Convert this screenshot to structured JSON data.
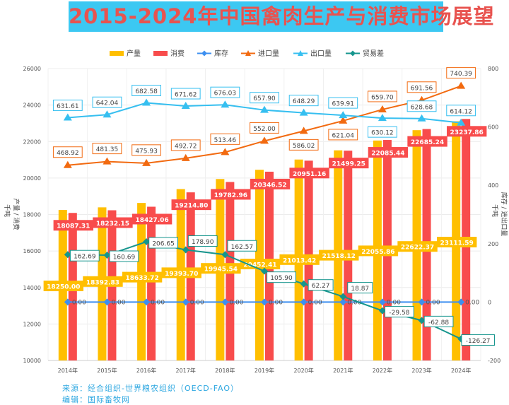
{
  "title": "2015-2024年中国禽肉生产与消费市场展望",
  "footer": {
    "source": "来源：经合组织-世界粮农组织（OECD-FAO）",
    "editor": "编辑：国际畜牧网"
  },
  "chart_data": {
    "type": "bar+line",
    "categories": [
      "2014年",
      "2015年",
      "2016年",
      "2017年",
      "2018年",
      "2019年",
      "2020年",
      "2021年",
      "2022年",
      "2023年",
      "2024年"
    ],
    "left_axis": {
      "label": "产量 / 消费",
      "unit": "千吨",
      "range": [
        10000,
        26000
      ],
      "ticks": [
        10000,
        12000,
        14000,
        16000,
        18000,
        20000,
        22000,
        24000,
        26000
      ]
    },
    "right_axis": {
      "label": "库存 / 进出口量",
      "unit": "千吨",
      "range": [
        -200,
        800
      ],
      "ticks": [
        -200,
        0,
        200,
        400,
        600,
        800
      ]
    },
    "grid": true,
    "legend_position": "top",
    "series": [
      {
        "name": "产量",
        "kind": "bar",
        "axis": "left",
        "color": "#ffbf00",
        "values": [
          18250.0,
          18392.83,
          18633.72,
          19393.7,
          19945.54,
          20452.41,
          21013.42,
          21518.12,
          22055.86,
          22622.37,
          23111.59
        ]
      },
      {
        "name": "消费",
        "kind": "bar",
        "axis": "left",
        "color": "#f84c4c",
        "values": [
          18087.31,
          18232.15,
          18427.06,
          19214.8,
          19782.96,
          20346.52,
          20951.16,
          21499.25,
          22085.44,
          22685.24,
          23237.86
        ]
      },
      {
        "name": "库存",
        "kind": "line",
        "axis": "right",
        "color": "#3d8ff0",
        "marker": "diamond",
        "values": [
          0,
          0,
          0,
          0,
          0,
          0,
          0,
          0,
          0,
          0,
          0
        ]
      },
      {
        "name": "进口量",
        "kind": "line",
        "axis": "right",
        "color": "#f26a10",
        "marker": "triangle",
        "values": [
          468.92,
          481.35,
          475.93,
          492.72,
          513.46,
          552.0,
          586.02,
          621.04,
          659.7,
          691.56,
          740.39
        ]
      },
      {
        "name": "出口量",
        "kind": "line",
        "axis": "right",
        "color": "#36bff0",
        "marker": "triangle",
        "values": [
          631.61,
          642.04,
          682.58,
          671.62,
          676.03,
          657.9,
          648.29,
          639.91,
          630.12,
          628.68,
          614.12
        ]
      },
      {
        "name": "贸易差",
        "kind": "line",
        "axis": "right",
        "color": "#15958d",
        "marker": "diamond",
        "values": [
          162.69,
          160.69,
          206.65,
          178.9,
          162.57,
          105.9,
          62.27,
          18.87,
          -29.58,
          -62.88,
          -126.27
        ]
      }
    ]
  }
}
